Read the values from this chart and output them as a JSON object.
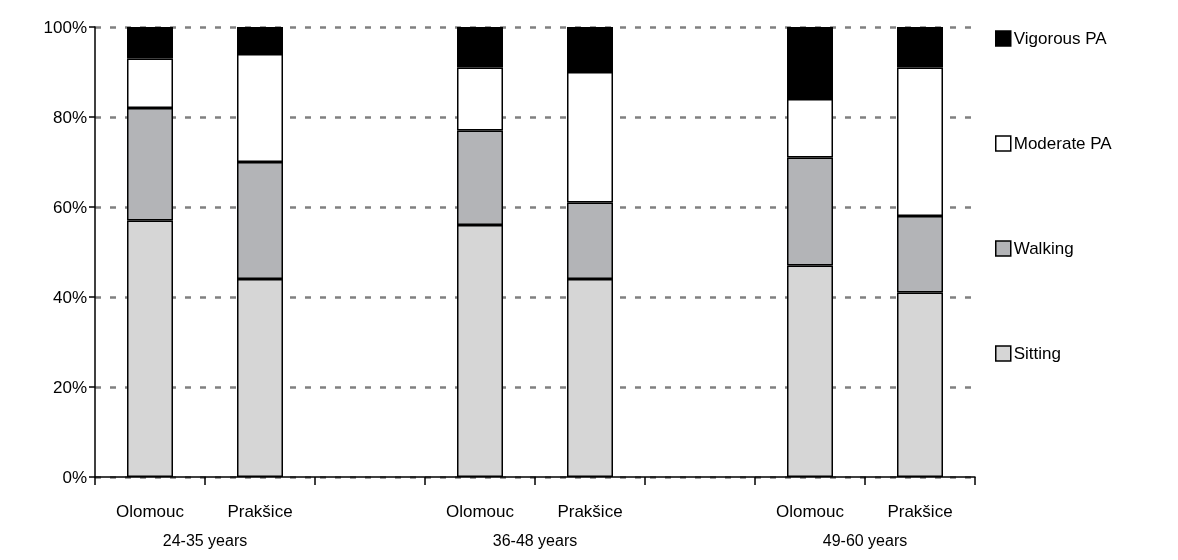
{
  "chart_data": {
    "type": "bar",
    "stacked": true,
    "categories": [
      "Olomouc",
      "Prakšice",
      null,
      "Olomouc",
      "Prakšice",
      null,
      "Olomouc",
      "Prakšice"
    ],
    "series": [
      {
        "name": "Sitting",
        "color": "#d6d6d6",
        "values": [
          57,
          44,
          null,
          56,
          44,
          null,
          47,
          41
        ]
      },
      {
        "name": "Walking",
        "color": "#b3b4b7",
        "values": [
          25,
          26,
          null,
          21,
          17,
          null,
          24,
          17
        ]
      },
      {
        "name": "Moderate PA",
        "color": "#ffffff",
        "values": [
          11,
          24,
          null,
          14,
          29,
          null,
          13,
          33
        ]
      },
      {
        "name": "Vigorous PA",
        "color": "#000000",
        "values": [
          7,
          6,
          null,
          9,
          10,
          null,
          16,
          9
        ]
      }
    ],
    "ylim": [
      0,
      100
    ],
    "yticks": [
      {
        "value": 0,
        "label": "0%"
      },
      {
        "value": 20,
        "label": "20%"
      },
      {
        "value": 40,
        "label": "40%"
      },
      {
        "value": 60,
        "label": "60%"
      },
      {
        "value": 80,
        "label": "80%"
      },
      {
        "value": 100,
        "label": "100%"
      }
    ],
    "grid": "y",
    "legend": "right",
    "annotations": [
      "24-35 years",
      "36-48 years",
      "49-60 years"
    ]
  }
}
